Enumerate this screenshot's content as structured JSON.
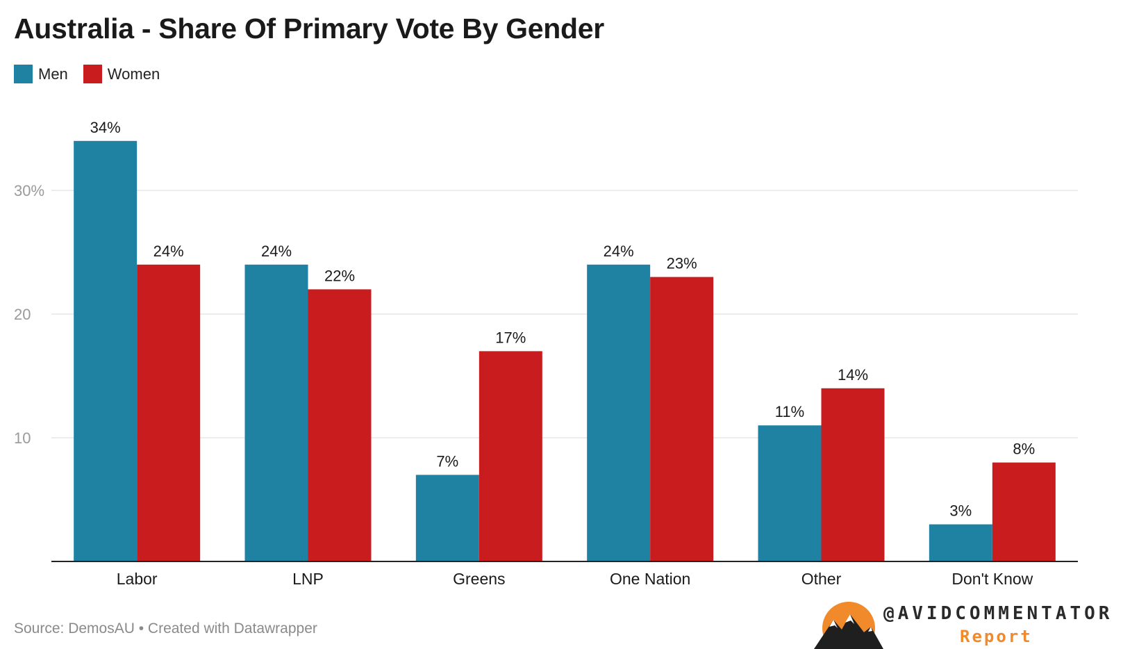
{
  "title": "Australia - Share Of Primary Vote By Gender",
  "source": "Source: DemosAU • Created with Datawrapper",
  "brand": {
    "handle": "@AVIDCOMMENTATOR",
    "sub": "Report"
  },
  "colors": {
    "men": "#1f82a3",
    "women": "#c91c1f",
    "grid": "#e0e0e0",
    "axis": "#222222",
    "tick": "#9a9a9a"
  },
  "chart_data": {
    "type": "bar",
    "title": "Australia - Share Of Primary Vote By Gender",
    "categories": [
      "Labor",
      "LNP",
      "Greens",
      "One Nation",
      "Other",
      "Don't Know"
    ],
    "series": [
      {
        "name": "Men",
        "values": [
          34,
          24,
          7,
          24,
          11,
          3
        ],
        "labels": [
          "34%",
          "24%",
          "7%",
          "24%",
          "11%",
          "3%"
        ]
      },
      {
        "name": "Women",
        "values": [
          24,
          22,
          17,
          23,
          14,
          8
        ],
        "labels": [
          "24%",
          "22%",
          "17%",
          "23%",
          "14%",
          "8%"
        ]
      }
    ],
    "yticks": [
      {
        "value": 10,
        "label": "10"
      },
      {
        "value": 20,
        "label": "20"
      },
      {
        "value": 30,
        "label": "30%"
      }
    ],
    "ylim": [
      0,
      37
    ],
    "xlabel": "",
    "ylabel": "",
    "legend": "top-left",
    "grid": true
  }
}
